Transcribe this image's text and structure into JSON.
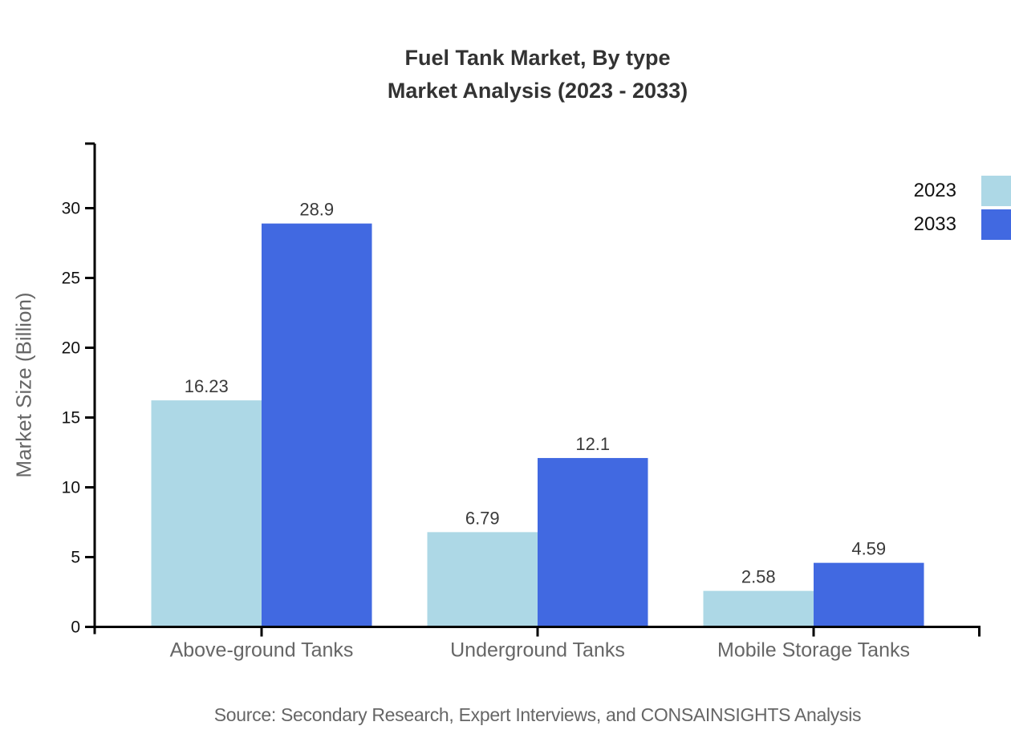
{
  "title": {
    "line1": "Fuel Tank Market, By type",
    "line2": "Market Analysis (2023 - 2033)"
  },
  "source": "Source: Secondary Research, Expert Interviews, and CONSAINSIGHTS Analysis",
  "chart_data": {
    "type": "bar",
    "title": "Fuel Tank Market, By type Market Analysis (2023 - 2033)",
    "xlabel": "",
    "ylabel": "Market Size (Billion)",
    "categories": [
      "Above-ground Tanks",
      "Underground Tanks",
      "Mobile Storage Tanks"
    ],
    "series": [
      {
        "name": "2023",
        "color": "#ADD8E6",
        "values": [
          16.23,
          6.79,
          2.58
        ]
      },
      {
        "name": "2033",
        "color": "#4169E1",
        "values": [
          28.9,
          12.1,
          4.59
        ]
      }
    ],
    "yticks": [
      0,
      5,
      10,
      15,
      20,
      25,
      30
    ],
    "ylim": [
      0,
      34.6
    ],
    "grid": false,
    "legend_position": "top-right",
    "value_labels_shown": true
  },
  "legend": {
    "items": [
      {
        "label": "2023",
        "color": "#ADD8E6"
      },
      {
        "label": "2033",
        "color": "#4169E1"
      }
    ]
  },
  "colors": {
    "axis": "#000000",
    "tick_label": "#111111",
    "category_label": "#666666",
    "value_label": "#3a3a3a",
    "title_text": "#333333",
    "muted_text": "#666666",
    "background": "#ffffff"
  }
}
